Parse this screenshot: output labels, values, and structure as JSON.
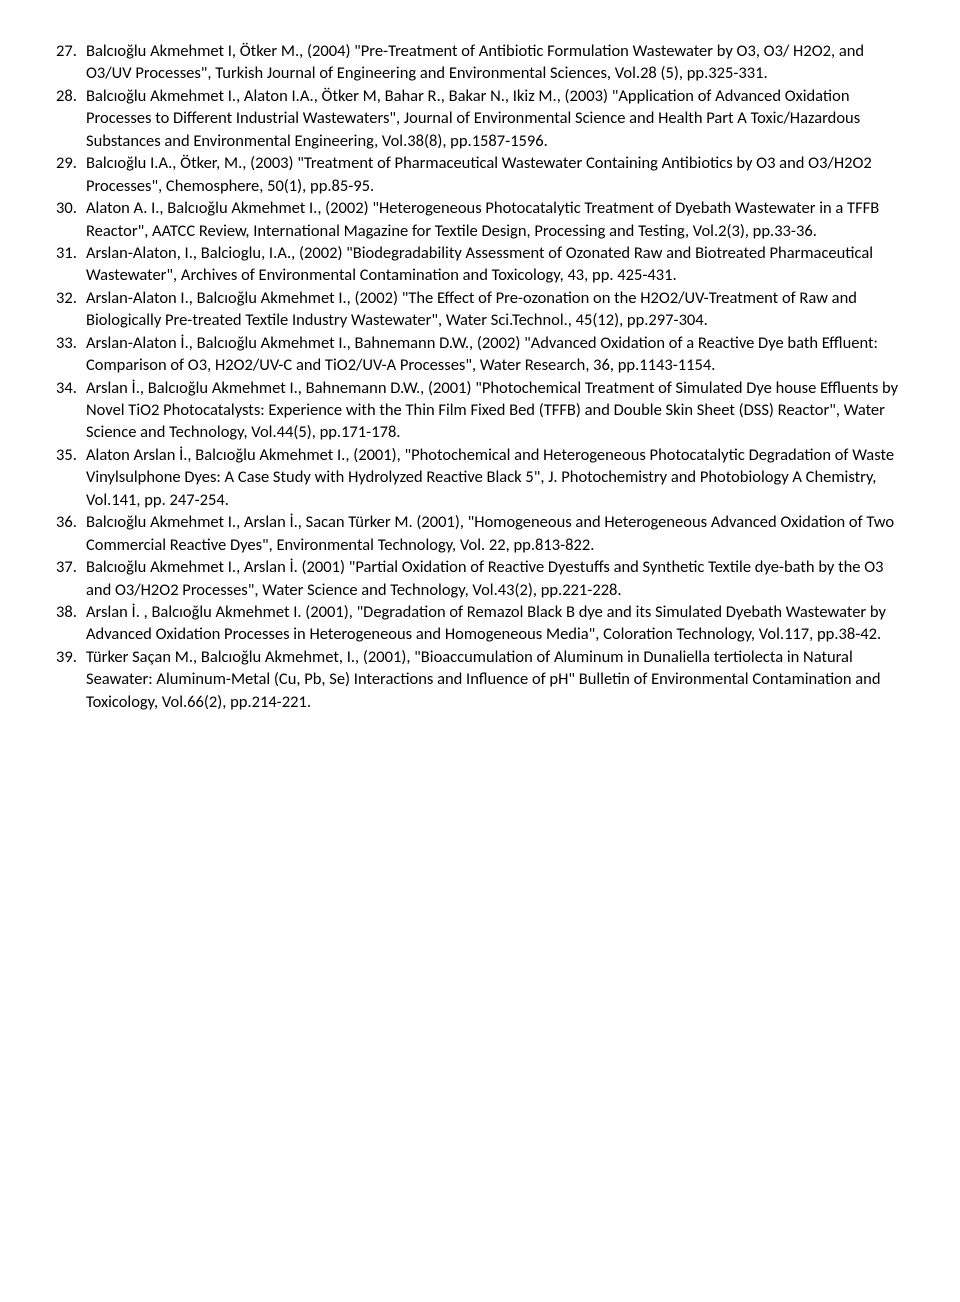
{
  "references": [
    {
      "num": "27.",
      "text": "Balcıoğlu Akmehmet I, Ötker M., (2004) \"Pre-Treatment of Antibiotic Formulation Wastewater by O3, O3/ H2O2, and O3/UV Processes\", Turkish Journal of Engineering and Environmental Sciences, Vol.28 (5), pp.325-331."
    },
    {
      "num": "28.",
      "text": "Balcıoğlu Akmehmet I., Alaton I.A., Ötker M, Bahar R., Bakar N., Ikiz M., (2003) \"Application of Advanced Oxidation Processes to Different Industrial Wastewaters\", Journal of Environmental Science and Health Part A Toxic/Hazardous Substances and Environmental Engineering, Vol.38(8), pp.1587-1596."
    },
    {
      "num": "29.",
      "text": "Balcıoğlu I.A., Ötker, M., (2003) \"Treatment of Pharmaceutical Wastewater Containing Antibiotics by O3 and O3/H2O2 Processes\", Chemosphere, 50(1), pp.85-95."
    },
    {
      "num": "30.",
      "text": "Alaton A. I., Balcıoğlu Akmehmet I., (2002) \"Heterogeneous Photocatalytic Treatment of Dyebath Wastewater in a TFFB Reactor\", AATCC Review, International Magazine for Textile Design, Processing and Testing, Vol.2(3), pp.33-36."
    },
    {
      "num": "31.",
      "text": "Arslan-Alaton, I., Balcioglu, I.A., (2002) \"Biodegradability Assessment of Ozonated Raw and Biotreated Pharmaceutical Wastewater\", Archives of Environmental Contamination and Toxicology, 43, pp. 425-431."
    },
    {
      "num": "32.",
      "text": "Arslan-Alaton I., Balcıoğlu Akmehmet I., (2002) \"The Effect of Pre-ozonation on the H2O2/UV-Treatment of Raw and Biologically Pre-treated Textile Industry Wastewater\", Water Sci.Technol., 45(12), pp.297-304."
    },
    {
      "num": "33.",
      "text": "Arslan-Alaton İ., Balcıoğlu Akmehmet I., Bahnemann D.W., (2002) \"Advanced Oxidation of a Reactive Dye bath Effluent: Comparison of O3, H2O2/UV-C and TiO2/UV-A Processes\", Water Research, 36, pp.1143-1154."
    },
    {
      "num": "34.",
      "text": "Arslan İ., Balcıoğlu Akmehmet I., Bahnemann D.W., (2001) \"Photochemical Treatment of Simulated Dye house Effluents by Novel TiO2 Photocatalysts: Experience with the Thin Film Fixed Bed (TFFB) and Double Skin Sheet (DSS) Reactor\", Water Science and Technology, Vol.44(5), pp.171-178."
    },
    {
      "num": "35.",
      "text": "Alaton Arslan İ., Balcıoğlu Akmehmet I., (2001), \"Photochemical and Heterogeneous Photocatalytic Degradation of Waste Vinylsulphone Dyes: A Case Study with Hydrolyzed Reactive Black 5\", J. Photochemistry and Photobiology A Chemistry, Vol.141, pp. 247-254."
    },
    {
      "num": "36.",
      "text": "Balcıoğlu Akmehmet I., Arslan İ., Sacan Türker M. (2001), \"Homogeneous and Heterogeneous Advanced Oxidation of Two Commercial Reactive Dyes\", Environmental Technology, Vol. 22, pp.813-822."
    },
    {
      "num": "37.",
      "text": "Balcıoğlu Akmehmet I., Arslan İ. (2001) \"Partial Oxidation of Reactive Dyestuffs and Synthetic Textile dye-bath by the O3 and O3/H2O2 Processes\", Water Science and Technology, Vol.43(2), pp.221-228."
    },
    {
      "num": "38.",
      "text": "Arslan İ. , Balcıoğlu Akmehmet I. (2001), \"Degradation of Remazol Black B dye and its Simulated Dyebath Wastewater by Advanced Oxidation Processes in Heterogeneous and Homogeneous Media\", Coloration Technology, Vol.117, pp.38-42."
    },
    {
      "num": "39.",
      "text": "Türker Saçan M., Balcıoğlu Akmehmet, I., (2001), \"Bioaccumulation of Aluminum in Dunaliella tertiolecta in Natural Seawater: Aluminum-Metal (Cu, Pb, Se) Interactions and Influence of pH\" Bulletin of Environmental Contamination and Toxicology, Vol.66(2), pp.214-221."
    }
  ]
}
